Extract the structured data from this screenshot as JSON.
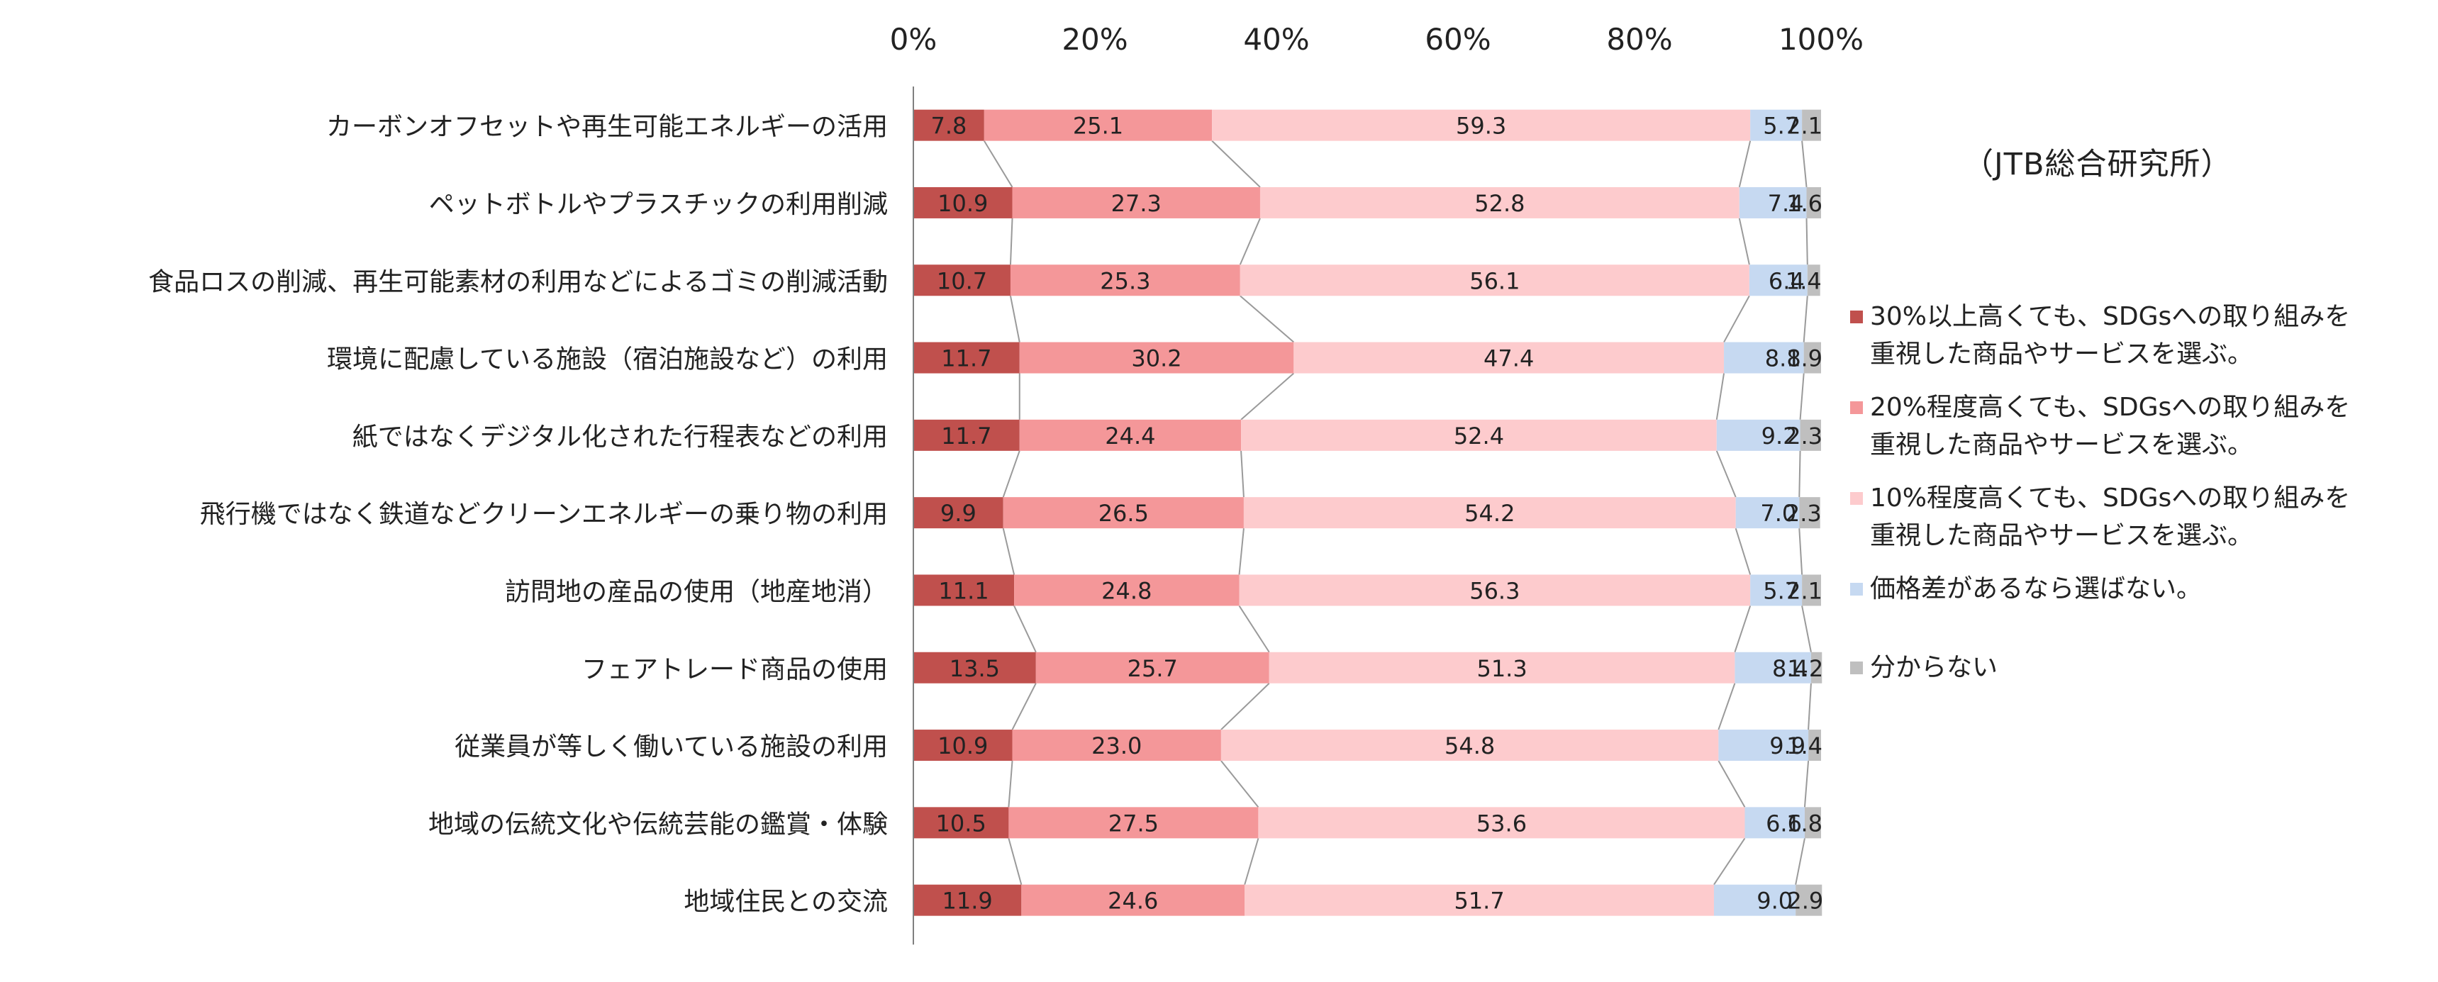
{
  "source_note": "（JTB総合研究所）",
  "legend": [
    {
      "label": "30%以上高くても、SDGsへの取り組みを\n重視した商品やサービスを選ぶ。",
      "color": "#c0504d"
    },
    {
      "label": "20%程度高くても、SDGsへの取り組みを\n重視した商品やサービスを選ぶ。",
      "color": "#f49799"
    },
    {
      "label": "10%程度高くても、SDGsへの取り組みを\n重視した商品やサービスを選ぶ。",
      "color": "#fdcbcd"
    },
    {
      "label": "価格差があるなら選ばない。",
      "color": "#c6d9f1"
    },
    {
      "label": "分からない",
      "color": "#bfbfbf"
    }
  ],
  "chart_data": {
    "type": "bar",
    "orientation": "horizontal",
    "stacked": "percent",
    "categories": [
      "カーボンオフセットや再生可能エネルギーの活用",
      "ペットボトルやプラスチックの利用削減",
      "食品ロスの削減、再生可能素材の利用などによるゴミの削減活動",
      "環境に配慮している施設（宿泊施設など）の利用",
      "紙ではなくデジタル化された行程表などの利用",
      "飛行機ではなく鉄道などクリーンエネルギーの乗り物の利用",
      "訪問地の産品の使用（地産地消）",
      "フェアトレード商品の使用",
      "従業員が等しく働いている施設の利用",
      "地域の伝統文化や伝統芸能の鑑賞・体験",
      "地域住民との交流"
    ],
    "series": [
      {
        "name": "30%以上高くても、SDGsへの取り組みを重視した商品やサービスを選ぶ。",
        "color": "#c0504d",
        "values": [
          7.8,
          10.9,
          10.7,
          11.7,
          11.7,
          9.9,
          11.1,
          13.5,
          10.9,
          10.5,
          11.9
        ],
        "labels": [
          "7.8",
          "10.9",
          "10.7",
          "11.7",
          "11.7",
          "9.9",
          "11.1",
          "13.5",
          "10.9",
          "10.5",
          "11.9"
        ]
      },
      {
        "name": "20%程度高くても、SDGsへの取り組みを重視した商品やサービスを選ぶ。",
        "color": "#f49799",
        "values": [
          25.1,
          27.3,
          25.3,
          30.2,
          24.4,
          26.5,
          24.8,
          25.7,
          23.0,
          27.5,
          24.6
        ],
        "labels": [
          "25.1",
          "27.3",
          "25.3",
          "30.2",
          "24.4",
          "26.5",
          "24.8",
          "25.7",
          "23.0",
          "27.5",
          "24.6"
        ]
      },
      {
        "name": "10%程度高くても、SDGsへの取り組みを重視した商品やサービスを選ぶ。",
        "color": "#fdcbcd",
        "values": [
          59.3,
          52.8,
          56.1,
          47.4,
          52.4,
          54.2,
          56.3,
          51.3,
          54.8,
          53.6,
          51.7
        ],
        "labels": [
          "59.3",
          "52.8",
          "56.1",
          "47.4",
          "52.4",
          "54.2",
          "56.3",
          "51.3",
          "54.8",
          "53.6",
          "51.7"
        ]
      },
      {
        "name": "価格差があるなら選ばない。",
        "color": "#c6d9f1",
        "values": [
          5.7,
          7.4,
          6.4,
          8.8,
          9.2,
          7.0,
          5.7,
          8.4,
          9.9,
          6.6,
          9.0
        ],
        "labels": [
          "5.7",
          "7.4",
          "6.4",
          "8.8",
          "9.2",
          "7.0",
          "5.7",
          "8.4",
          "9.9",
          "6.6",
          "9.0"
        ]
      },
      {
        "name": "分からない",
        "color": "#bfbfbf",
        "values": [
          2.1,
          1.6,
          1.4,
          1.9,
          2.3,
          2.3,
          2.1,
          1.2,
          1.4,
          1.8,
          2.9
        ],
        "labels": [
          "2.1",
          "1.6",
          "1.4",
          "1.9",
          "2.3",
          "2.3",
          "2.1",
          "1.2",
          "1.4",
          "1.8",
          "2.9"
        ]
      }
    ],
    "xlim": [
      0,
      100
    ],
    "x_ticks": [
      "0%",
      "20%",
      "40%",
      "60%",
      "80%",
      "100%"
    ],
    "xaxis_position": "top",
    "series_lines": true,
    "grid": false,
    "legend_position": "right"
  }
}
